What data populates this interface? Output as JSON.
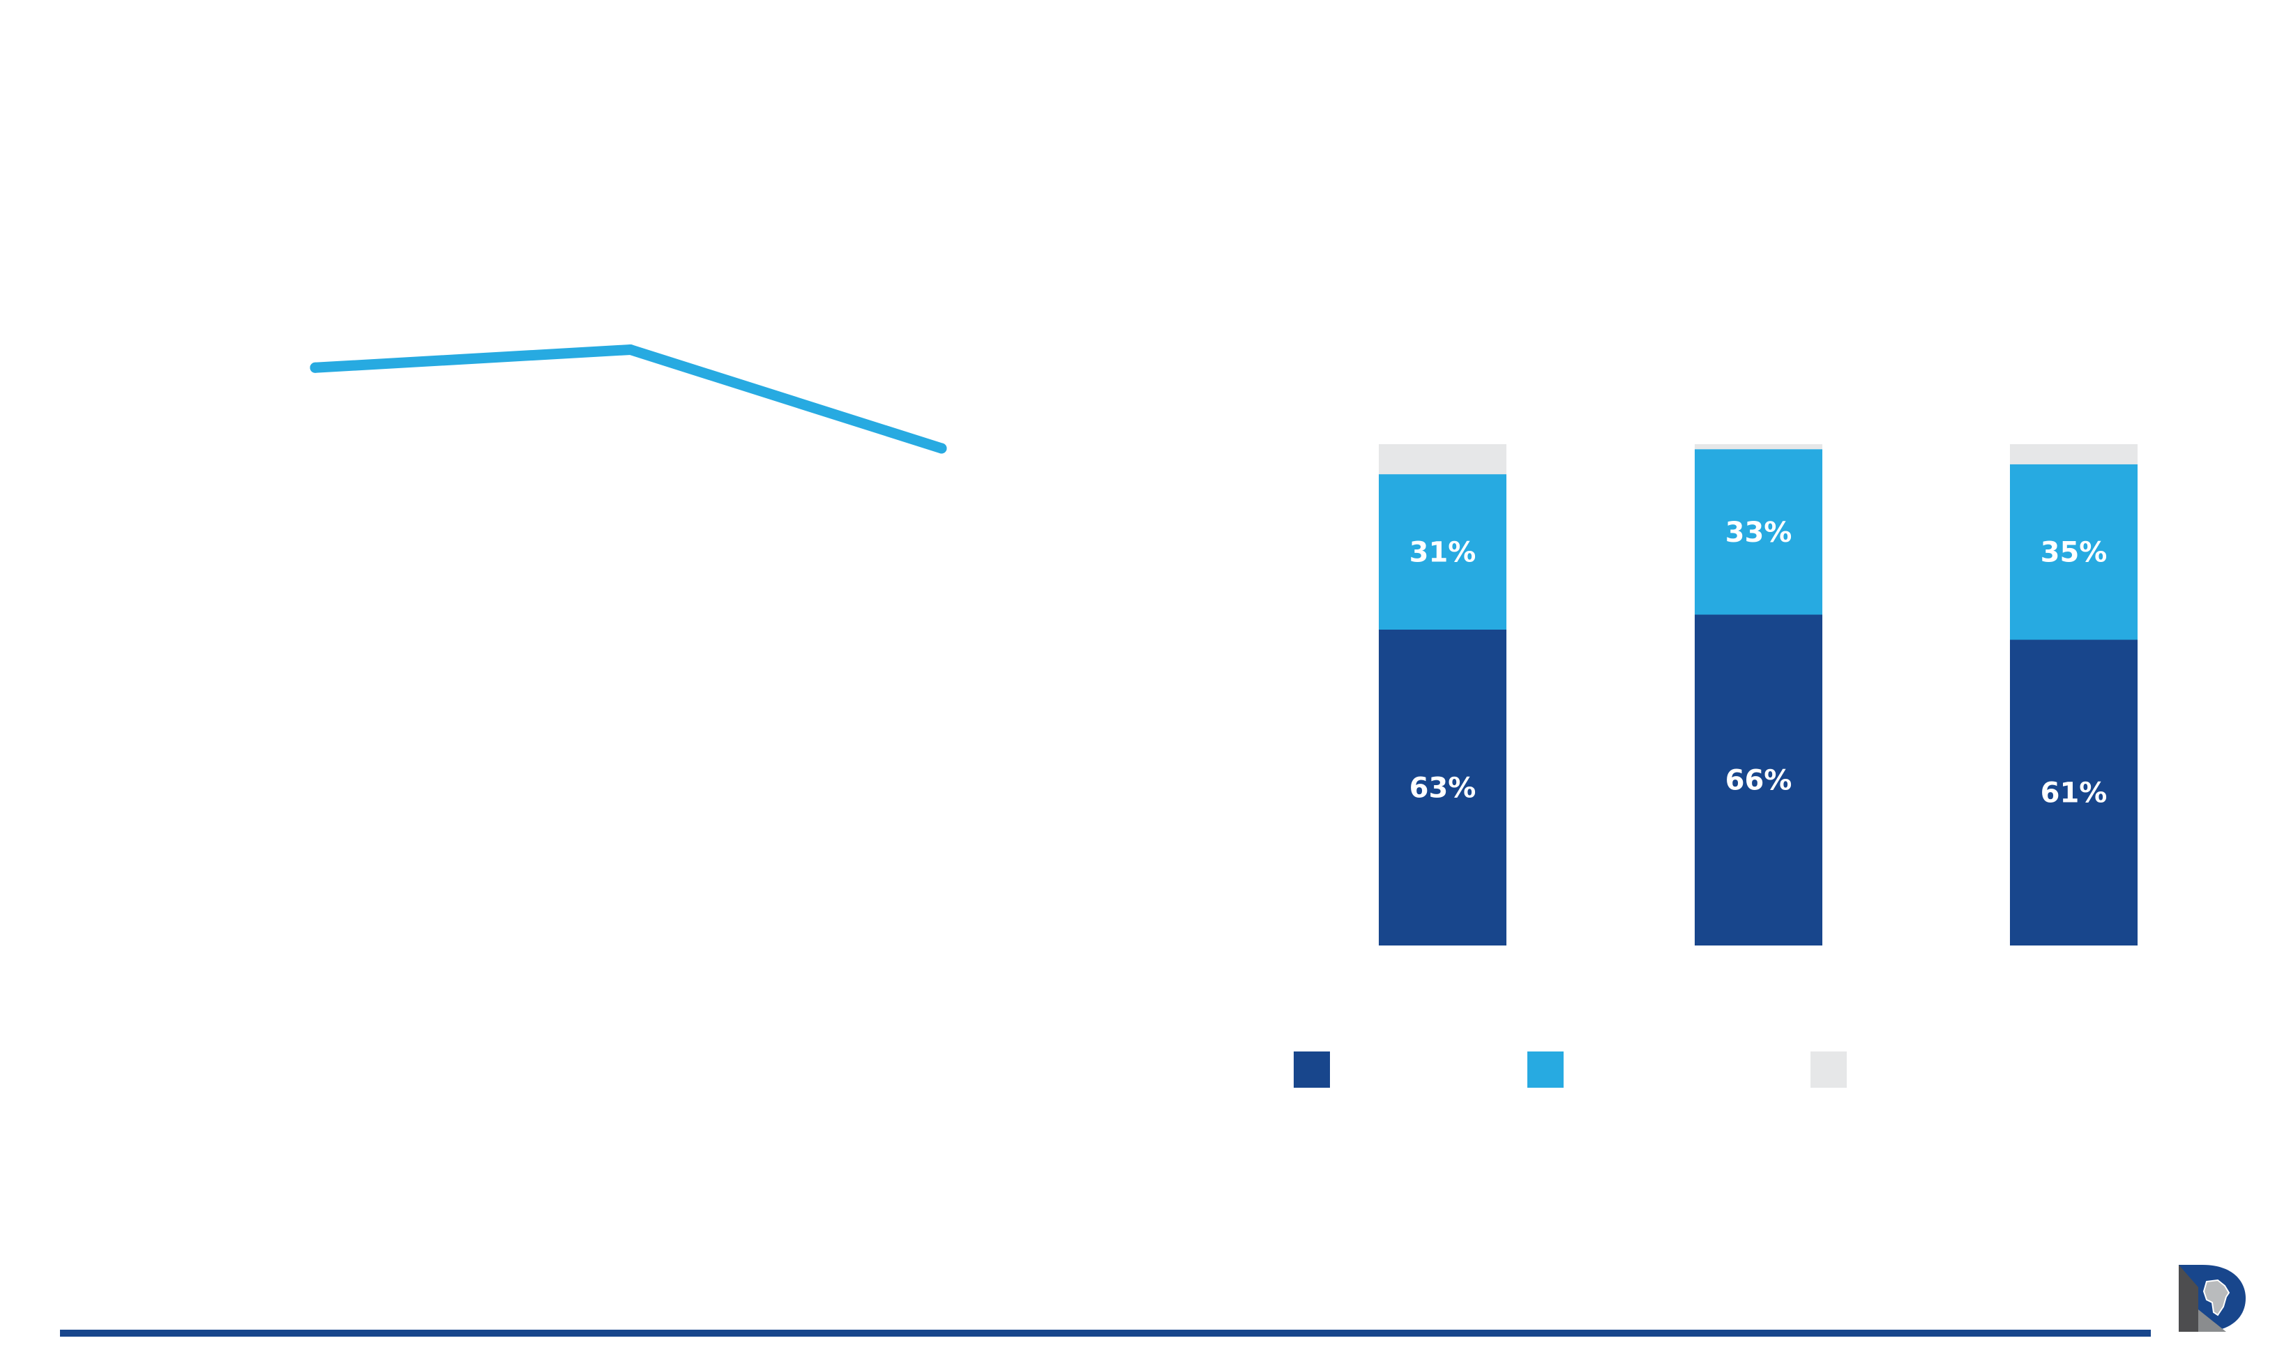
{
  "colors": {
    "dark_blue": "#18468C",
    "light_blue": "#27AAE1",
    "light_gray": "#E6E7E8",
    "background": "#FFFFFF"
  },
  "chart_data": [
    {
      "type": "line",
      "x": [
        "",
        "",
        ""
      ],
      "series": [
        {
          "color": "#27AAE1",
          "values": [
            0.59,
            0.61,
            0.5
          ]
        }
      ],
      "ylim": [
        0,
        1
      ],
      "grid": false,
      "legend": "none"
    },
    {
      "type": "bar",
      "stacked": true,
      "categories": [
        "",
        "",
        ""
      ],
      "series": [
        {
          "color": "#18468C",
          "values": [
            63,
            66,
            61
          ],
          "labels": [
            "63%",
            "66%",
            "61%"
          ]
        },
        {
          "color": "#27AAE1",
          "values": [
            31,
            33,
            35
          ],
          "labels": [
            "31%",
            "33%",
            "35%"
          ]
        },
        {
          "color": "#E6E7E8",
          "values": [
            6,
            1,
            4
          ],
          "labels": [
            "",
            "",
            ""
          ]
        }
      ],
      "ylim": [
        0,
        100
      ],
      "grid": false,
      "legend": "bottom"
    }
  ],
  "logo": {
    "icon": "africa-d-logo-icon"
  }
}
